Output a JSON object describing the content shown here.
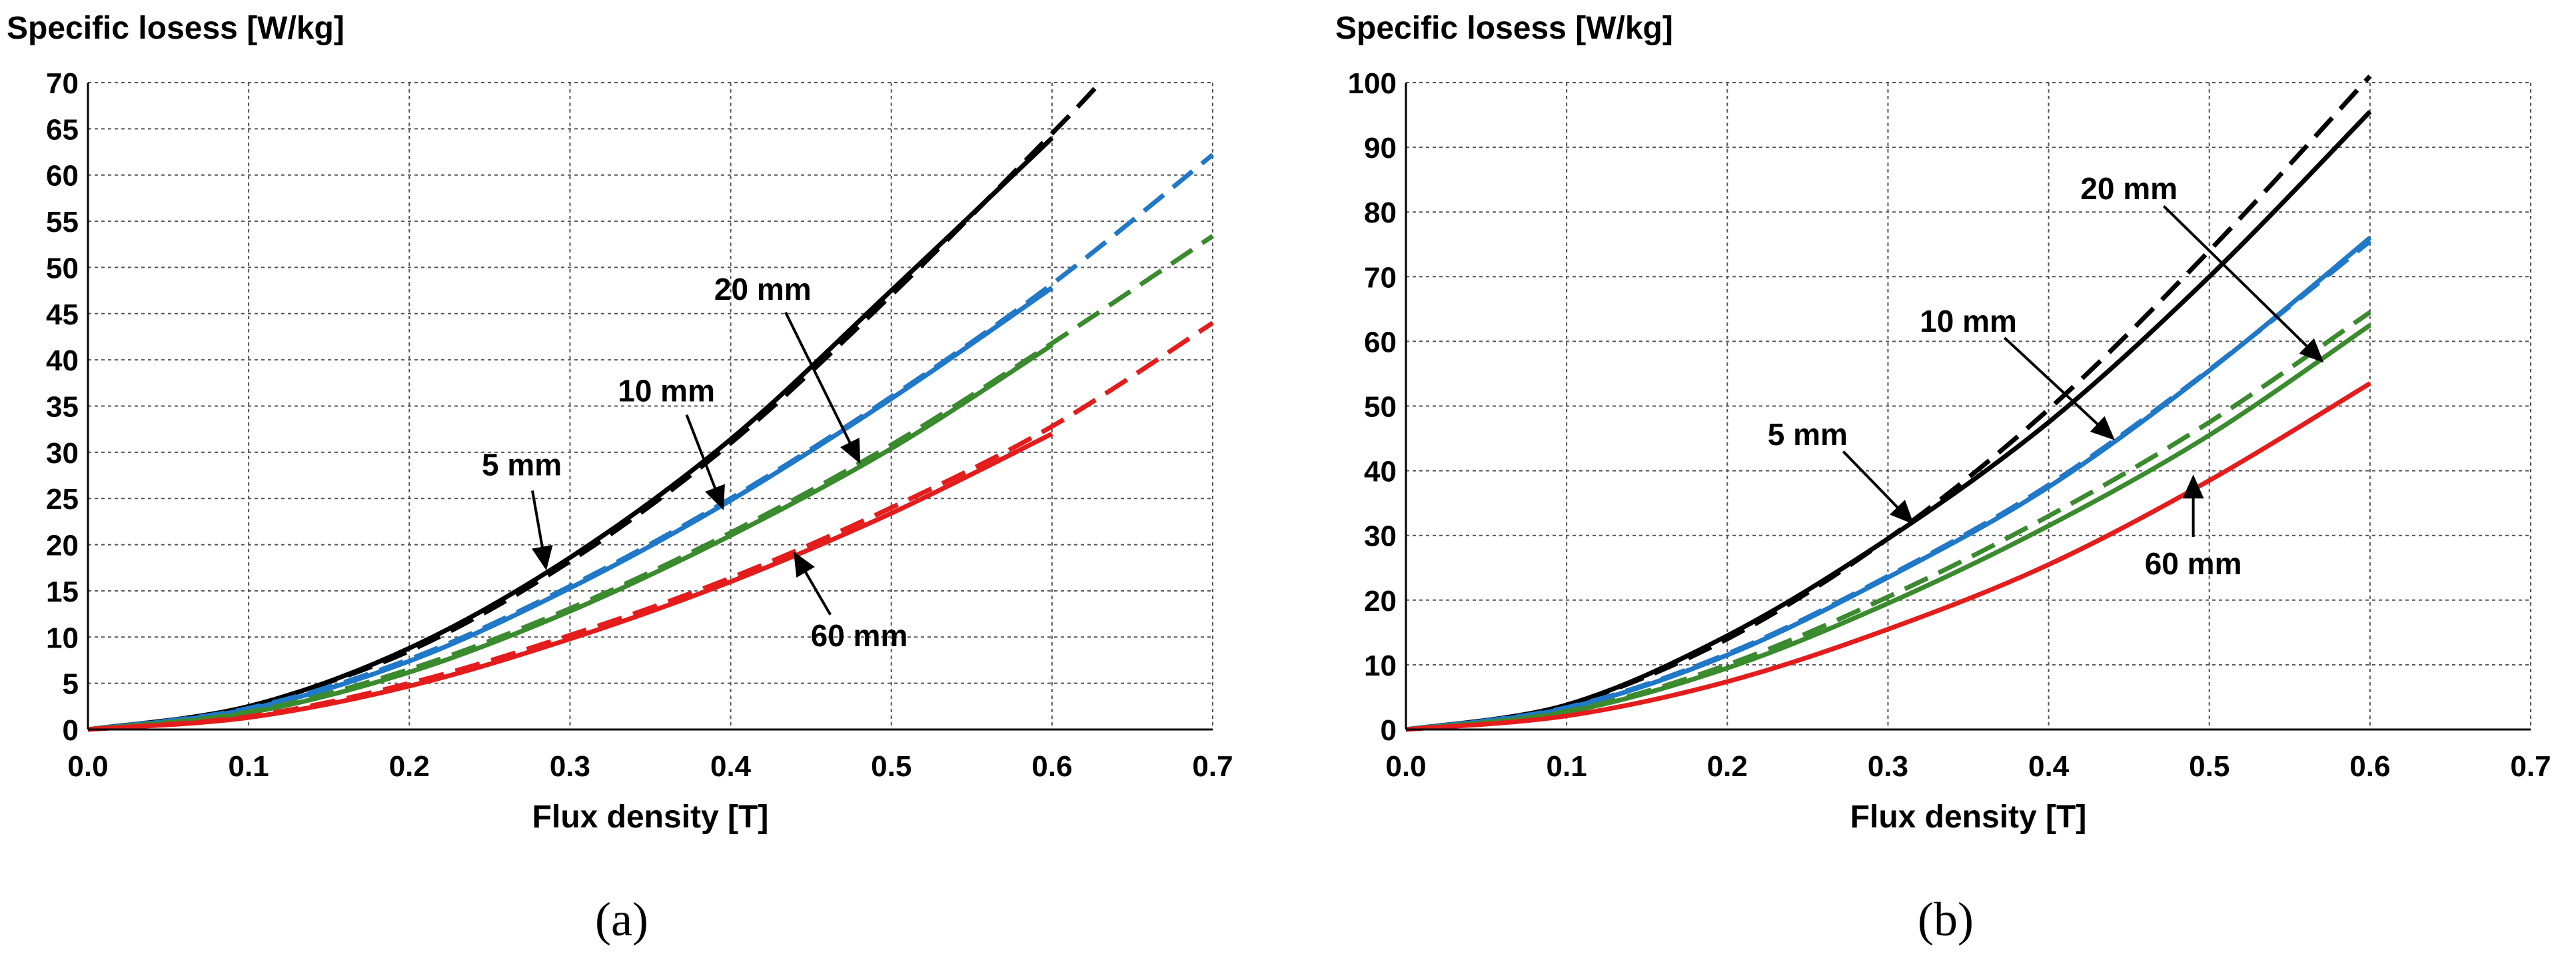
{
  "figure": {
    "panels": [
      "(a)",
      "(b)"
    ]
  },
  "colors": {
    "5 mm": "#000000",
    "10 mm": "#1f78c8",
    "20 mm": "#3a8a2e",
    "60 mm": "#e51c1c",
    "grid": "#555555"
  },
  "chart_data": [
    {
      "type": "line",
      "panel": "(a)",
      "ylabel": "Specific losess [W/kg]",
      "xlabel": "Flux density [T]",
      "xlim": [
        0.0,
        0.7
      ],
      "ylim": [
        0,
        70
      ],
      "xticks": [
        "0.0",
        "0.1",
        "0.2",
        "0.3",
        "0.4",
        "0.5",
        "0.6",
        "0.7"
      ],
      "yticks": [
        "0",
        "5",
        "10",
        "15",
        "20",
        "25",
        "30",
        "35",
        "40",
        "45",
        "50",
        "55",
        "60",
        "65",
        "70"
      ],
      "grid": true,
      "series": [
        {
          "name": "5 mm",
          "style": "solid",
          "x": [
            0,
            0.1,
            0.2,
            0.3,
            0.4,
            0.5,
            0.6
          ],
          "y": [
            0,
            2.5,
            8.8,
            18.6,
            31.4,
            47.5,
            64.0
          ]
        },
        {
          "name": "5 mm",
          "style": "dashed",
          "x": [
            0.05,
            0.1,
            0.2,
            0.3,
            0.4,
            0.5,
            0.6,
            0.63
          ],
          "y": [
            0.6,
            2.4,
            8.5,
            18.2,
            31.0,
            47.0,
            64.5,
            70.0
          ]
        },
        {
          "name": "10 mm",
          "style": "solid",
          "x": [
            0,
            0.1,
            0.2,
            0.3,
            0.4,
            0.5,
            0.6
          ],
          "y": [
            0,
            2.2,
            7.4,
            15.3,
            24.8,
            35.8,
            47.8
          ]
        },
        {
          "name": "10 mm",
          "style": "dashed",
          "x": [
            0,
            0.1,
            0.2,
            0.3,
            0.4,
            0.5,
            0.6,
            0.7
          ],
          "y": [
            0,
            2.3,
            7.6,
            15.5,
            25.0,
            36.0,
            48.2,
            62.2
          ]
        },
        {
          "name": "20 mm",
          "style": "solid",
          "x": [
            0,
            0.1,
            0.2,
            0.3,
            0.4,
            0.5,
            0.6
          ],
          "y": [
            0,
            1.8,
            6.2,
            12.8,
            21.0,
            30.4,
            41.6
          ]
        },
        {
          "name": "20 mm",
          "style": "dashed",
          "x": [
            0,
            0.1,
            0.2,
            0.3,
            0.4,
            0.5,
            0.6,
            0.7
          ],
          "y": [
            0,
            1.9,
            6.5,
            13.1,
            21.3,
            30.8,
            41.8,
            53.4
          ]
        },
        {
          "name": "60 mm",
          "style": "solid",
          "x": [
            0,
            0.1,
            0.2,
            0.3,
            0.4,
            0.5,
            0.6
          ],
          "y": [
            0,
            1.3,
            4.7,
            9.8,
            16.0,
            23.4,
            32.0
          ]
        },
        {
          "name": "60 mm",
          "style": "dashed",
          "x": [
            0,
            0.1,
            0.2,
            0.3,
            0.4,
            0.5,
            0.6,
            0.7
          ],
          "y": [
            0,
            1.4,
            5.0,
            10.2,
            16.4,
            24.0,
            32.8,
            44.0
          ]
        }
      ],
      "annotations": [
        {
          "text": "5 mm",
          "label_at": [
            0.27,
            27.5
          ],
          "arrow_to": [
            0.285,
            17.5
          ]
        },
        {
          "text": "10 mm",
          "label_at": [
            0.36,
            35.5
          ],
          "arrow_to": [
            0.395,
            24.0
          ]
        },
        {
          "text": "20 mm",
          "label_at": [
            0.42,
            46.5
          ],
          "arrow_to": [
            0.48,
            29.0
          ]
        },
        {
          "text": "60 mm",
          "label_at": [
            0.48,
            9.0
          ],
          "arrow_to": [
            0.44,
            19.0
          ]
        }
      ]
    },
    {
      "type": "line",
      "panel": "(b)",
      "ylabel": "Specific losess [W/kg]",
      "xlabel": "Flux density [T]",
      "xlim": [
        0.0,
        0.7
      ],
      "ylim": [
        0,
        100
      ],
      "xticks": [
        "0.0",
        "0.1",
        "0.2",
        "0.3",
        "0.4",
        "0.5",
        "0.6",
        "0.7"
      ],
      "yticks": [
        "0",
        "10",
        "20",
        "30",
        "40",
        "50",
        "60",
        "70",
        "80",
        "90",
        "100"
      ],
      "grid": true,
      "series": [
        {
          "name": "5 mm",
          "style": "solid",
          "x": [
            0,
            0.1,
            0.2,
            0.3,
            0.4,
            0.5,
            0.6
          ],
          "y": [
            0,
            3.8,
            14.5,
            29.5,
            47.5,
            70.0,
            95.5
          ]
        },
        {
          "name": "5 mm",
          "style": "dashed",
          "x": [
            0.02,
            0.1,
            0.2,
            0.3,
            0.4,
            0.5,
            0.6
          ],
          "y": [
            0.4,
            3.7,
            14.0,
            29.5,
            49.5,
            74.0,
            101.0
          ]
        },
        {
          "name": "10 mm",
          "style": "solid",
          "x": [
            0,
            0.1,
            0.2,
            0.3,
            0.4,
            0.5,
            0.6
          ],
          "y": [
            0,
            3.3,
            11.5,
            23.5,
            37.5,
            55.5,
            76.0
          ]
        },
        {
          "name": "10 mm",
          "style": "dashed",
          "x": [
            0,
            0.1,
            0.2,
            0.3,
            0.4,
            0.5,
            0.6
          ],
          "y": [
            0,
            3.4,
            11.7,
            23.7,
            37.8,
            55.6,
            75.5
          ]
        },
        {
          "name": "20 mm",
          "style": "solid",
          "x": [
            0,
            0.1,
            0.2,
            0.3,
            0.4,
            0.5,
            0.6
          ],
          "y": [
            0,
            2.7,
            9.5,
            19.5,
            31.5,
            45.5,
            62.5
          ]
        },
        {
          "name": "20 mm",
          "style": "dashed",
          "x": [
            0,
            0.1,
            0.2,
            0.3,
            0.4,
            0.5,
            0.6
          ],
          "y": [
            0,
            2.8,
            10.0,
            20.5,
            33.0,
            47.5,
            64.5
          ]
        },
        {
          "name": "60 mm",
          "style": "solid",
          "x": [
            0,
            0.1,
            0.2,
            0.3,
            0.4,
            0.5,
            0.6
          ],
          "y": [
            0,
            2.1,
            7.4,
            15.5,
            25.5,
            38.5,
            53.5
          ]
        }
      ],
      "annotations": [
        {
          "text": "5 mm",
          "label_at": [
            0.25,
            44.0
          ],
          "arrow_to": [
            0.315,
            32.0
          ]
        },
        {
          "text": "10 mm",
          "label_at": [
            0.35,
            61.5
          ],
          "arrow_to": [
            0.44,
            45.0
          ]
        },
        {
          "text": "20 mm",
          "label_at": [
            0.45,
            82.0
          ],
          "arrow_to": [
            0.57,
            57.0
          ]
        },
        {
          "text": "60 mm",
          "label_at": [
            0.49,
            24.0
          ],
          "arrow_to": [
            0.49,
            39.0
          ]
        }
      ]
    }
  ]
}
